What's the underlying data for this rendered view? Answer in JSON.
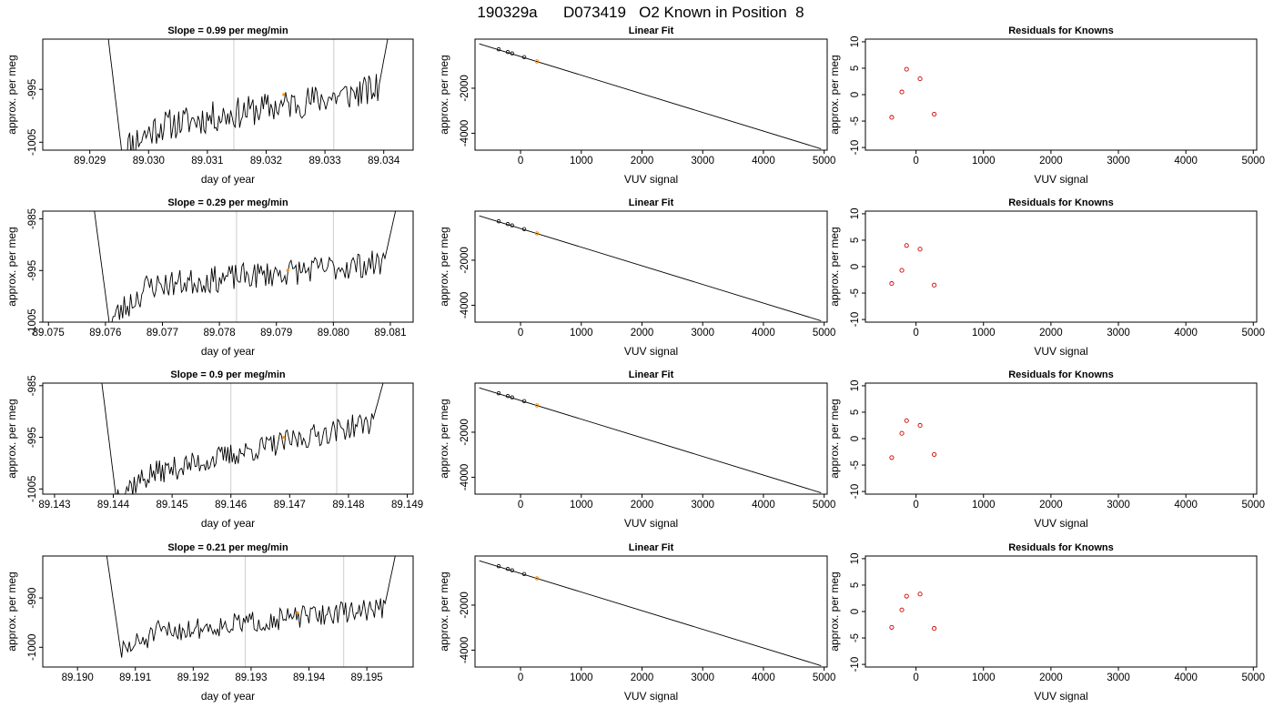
{
  "title": "190329a      D073419   O2 Known in Position  8",
  "colors": {
    "axis": "#000000",
    "trace": "#000000",
    "marker_orange": "#ff8c00",
    "marker_red": "#cc0000",
    "vline": "#cccccc"
  },
  "chart_data": [
    {
      "type": "line",
      "row": 1,
      "col": 1,
      "title": "Slope =  0.99  per meg/min",
      "xlabel": "day of year",
      "ylabel": "approx. per meg",
      "xlim": [
        89.0282,
        89.0345
      ],
      "ylim": [
        -1006.5,
        -985.5
      ],
      "xticks": [
        "89.029",
        "89.030",
        "89.031",
        "89.032",
        "89.033",
        "89.034"
      ],
      "xtick_values": [
        89.029,
        89.03,
        89.031,
        89.032,
        89.033,
        89.034
      ],
      "yticks": [
        "-1005",
        "-995"
      ],
      "ytick_values": [
        -1005,
        -995
      ],
      "trace": {
        "x_start": 89.0293,
        "x_end": 89.0341,
        "start_y": -984,
        "end_y": -983.5,
        "y_min": -1006.5,
        "y_from": -1002,
        "y_to": -995,
        "amp": 3.0,
        "seed": 11
      },
      "vlines": [
        89.03145,
        89.03315
      ],
      "marker": {
        "x": 89.0323,
        "y": -996
      }
    },
    {
      "type": "line",
      "row": 2,
      "col": 1,
      "title": "Slope =  0.29  per meg/min",
      "xlabel": "day of year",
      "ylabel": "approx. per meg",
      "xlim": [
        89.0749,
        89.0814
      ],
      "ylim": [
        -1005,
        -983.5
      ],
      "xticks": [
        "89.075",
        "89.076",
        "89.077",
        "89.078",
        "89.079",
        "89.080",
        "89.081"
      ],
      "xtick_values": [
        89.075,
        89.076,
        89.077,
        89.078,
        89.079,
        89.08,
        89.081
      ],
      "yticks": [
        "-1005",
        "-995",
        "-985"
      ],
      "ytick_values": [
        -1005,
        -995,
        -985
      ],
      "trace": {
        "x_start": 89.0758,
        "x_end": 89.0811,
        "start_y": -983,
        "end_y": -983,
        "y_min": -1005,
        "y_from": -998,
        "y_to": -993.5,
        "amp": 2.6,
        "seed": 23
      },
      "vlines": [
        89.0783,
        89.08
      ],
      "marker": {
        "x": 89.0792,
        "y": -995
      }
    },
    {
      "type": "line",
      "row": 3,
      "col": 1,
      "title": "Slope =  0.9  per meg/min",
      "xlabel": "day of year",
      "ylabel": "approx. per meg",
      "xlim": [
        89.1428,
        89.1491
      ],
      "ylim": [
        -1006,
        -984.5
      ],
      "xticks": [
        "89.143",
        "89.144",
        "89.145",
        "89.146",
        "89.147",
        "89.148",
        "89.149"
      ],
      "xtick_values": [
        89.143,
        89.144,
        89.145,
        89.146,
        89.147,
        89.148,
        89.149
      ],
      "yticks": [
        "-1005",
        "-995",
        "-985"
      ],
      "ytick_values": [
        -1005,
        -995,
        -985
      ],
      "trace": {
        "x_start": 89.1438,
        "x_end": 89.1486,
        "start_y": -984,
        "end_y": -984,
        "y_min": -1006,
        "y_from": -1002,
        "y_to": -992,
        "amp": 2.3,
        "seed": 37
      },
      "vlines": [
        89.146,
        89.1478
      ],
      "marker": {
        "x": 89.1469,
        "y": -995
      }
    },
    {
      "type": "line",
      "row": 4,
      "col": 1,
      "title": "Slope =  0.21  per meg/min",
      "xlabel": "day of year",
      "ylabel": "approx. per meg",
      "xlim": [
        89.1894,
        89.1958
      ],
      "ylim": [
        -1004,
        -981.5
      ],
      "xticks": [
        "89.190",
        "89.191",
        "89.192",
        "89.193",
        "89.194",
        "89.195"
      ],
      "xtick_values": [
        89.19,
        89.191,
        89.192,
        89.193,
        89.194,
        89.195
      ],
      "yticks": [
        "-1000",
        "-990"
      ],
      "ytick_values": [
        -1000,
        -990
      ],
      "trace": {
        "x_start": 89.1905,
        "x_end": 89.1955,
        "start_y": -981,
        "end_y": -981,
        "y_min": -1001,
        "y_from": -997,
        "y_to": -992,
        "amp": 2.2,
        "seed": 51
      },
      "vlines": [
        89.1929,
        89.1946
      ],
      "marker": {
        "x": 89.1938,
        "y": -993
      }
    },
    {
      "type": "line",
      "row": 1,
      "col": 2,
      "title": "Linear Fit",
      "xlabel": "VUV signal",
      "ylabel": "approx. per meg",
      "xlim": [
        -750,
        5050
      ],
      "ylim": [
        -4750,
        180
      ],
      "xticks": [
        "0",
        "1000",
        "2000",
        "3000",
        "4000",
        "5000"
      ],
      "xtick_values": [
        0,
        1000,
        2000,
        3000,
        4000,
        5000
      ],
      "yticks": [
        "-4000",
        "-2000"
      ],
      "ytick_values": [
        -4000,
        -2000
      ],
      "line": {
        "x": [
          -680,
          4950
        ],
        "y": [
          -30,
          -4690
        ]
      },
      "points": {
        "x": [
          -360,
          -210,
          -140,
          60
        ],
        "y": [
          -270,
          -395,
          -455,
          -620
        ]
      },
      "known": {
        "x": 270,
        "y": -810
      }
    },
    {
      "type": "line",
      "row": 2,
      "col": 2,
      "title": "Linear Fit",
      "xlabel": "VUV signal",
      "ylabel": "approx. per meg",
      "xlim": [
        -750,
        5050
      ],
      "ylim": [
        -4750,
        180
      ],
      "xticks": [
        "0",
        "1000",
        "2000",
        "3000",
        "4000",
        "5000"
      ],
      "xtick_values": [
        0,
        1000,
        2000,
        3000,
        4000,
        5000
      ],
      "yticks": [
        "-4000",
        "-2000"
      ],
      "ytick_values": [
        -4000,
        -2000
      ],
      "line": {
        "x": [
          -680,
          4950
        ],
        "y": [
          -30,
          -4690
        ]
      },
      "points": {
        "x": [
          -360,
          -210,
          -140,
          60
        ],
        "y": [
          -270,
          -395,
          -455,
          -620
        ]
      },
      "known": {
        "x": 270,
        "y": -810
      }
    },
    {
      "type": "line",
      "row": 3,
      "col": 2,
      "title": "Linear Fit",
      "xlabel": "VUV signal",
      "ylabel": "approx. per meg",
      "xlim": [
        -750,
        5050
      ],
      "ylim": [
        -4750,
        180
      ],
      "xticks": [
        "0",
        "1000",
        "2000",
        "3000",
        "4000",
        "5000"
      ],
      "xtick_values": [
        0,
        1000,
        2000,
        3000,
        4000,
        5000
      ],
      "yticks": [
        "-4000",
        "-2000"
      ],
      "ytick_values": [
        -4000,
        -2000
      ],
      "line": {
        "x": [
          -680,
          4950
        ],
        "y": [
          -30,
          -4690
        ]
      },
      "points": {
        "x": [
          -360,
          -210,
          -140,
          60
        ],
        "y": [
          -270,
          -395,
          -455,
          -620
        ]
      },
      "known": {
        "x": 270,
        "y": -810
      }
    },
    {
      "type": "line",
      "row": 4,
      "col": 2,
      "title": "Linear Fit",
      "xlabel": "VUV signal",
      "ylabel": "approx. per meg",
      "xlim": [
        -750,
        5050
      ],
      "ylim": [
        -4750,
        180
      ],
      "xticks": [
        "0",
        "1000",
        "2000",
        "3000",
        "4000",
        "5000"
      ],
      "xtick_values": [
        0,
        1000,
        2000,
        3000,
        4000,
        5000
      ],
      "yticks": [
        "-4000",
        "-2000"
      ],
      "ytick_values": [
        -4000,
        -2000
      ],
      "line": {
        "x": [
          -680,
          4950
        ],
        "y": [
          -30,
          -4690
        ]
      },
      "points": {
        "x": [
          -360,
          -210,
          -140,
          60
        ],
        "y": [
          -270,
          -395,
          -455,
          -620
        ]
      },
      "known": {
        "x": 270,
        "y": -810
      }
    },
    {
      "type": "scatter",
      "row": 1,
      "col": 3,
      "title": "Residuals for Knowns",
      "xlabel": "VUV signal",
      "ylabel": "approx. per meg",
      "xlim": [
        -750,
        5050
      ],
      "ylim": [
        -10.5,
        10.5
      ],
      "xticks": [
        "0",
        "1000",
        "2000",
        "3000",
        "4000",
        "5000"
      ],
      "xtick_values": [
        0,
        1000,
        2000,
        3000,
        4000,
        5000
      ],
      "yticks": [
        "-10",
        "-5",
        "0",
        "5",
        "10"
      ],
      "ytick_values": [
        -10,
        -5,
        0,
        5,
        10
      ],
      "points": {
        "x": [
          -360,
          -210,
          -140,
          60,
          270
        ],
        "y": [
          -4.3,
          0.5,
          4.8,
          3.0,
          -3.7
        ]
      }
    },
    {
      "type": "scatter",
      "row": 2,
      "col": 3,
      "title": "Residuals for Knowns",
      "xlabel": "VUV signal",
      "ylabel": "approx. per meg",
      "xlim": [
        -750,
        5050
      ],
      "ylim": [
        -10.5,
        10.5
      ],
      "xticks": [
        "0",
        "1000",
        "2000",
        "3000",
        "4000",
        "5000"
      ],
      "xtick_values": [
        0,
        1000,
        2000,
        3000,
        4000,
        5000
      ],
      "yticks": [
        "-10",
        "-5",
        "0",
        "5",
        "10"
      ],
      "ytick_values": [
        -10,
        -5,
        0,
        5,
        10
      ],
      "points": {
        "x": [
          -360,
          -210,
          -140,
          60,
          270
        ],
        "y": [
          -3.2,
          -0.7,
          4.0,
          3.3,
          -3.5
        ]
      }
    },
    {
      "type": "scatter",
      "row": 3,
      "col": 3,
      "title": "Residuals for Knowns",
      "xlabel": "VUV signal",
      "ylabel": "approx. per meg",
      "xlim": [
        -750,
        5050
      ],
      "ylim": [
        -10.5,
        10.5
      ],
      "xticks": [
        "0",
        "1000",
        "2000",
        "3000",
        "4000",
        "5000"
      ],
      "xtick_values": [
        0,
        1000,
        2000,
        3000,
        4000,
        5000
      ],
      "yticks": [
        "-10",
        "-5",
        "0",
        "5",
        "10"
      ],
      "ytick_values": [
        -10,
        -5,
        0,
        5,
        10
      ],
      "points": {
        "x": [
          -360,
          -210,
          -140,
          60,
          270
        ],
        "y": [
          -3.6,
          1.0,
          3.4,
          2.5,
          -3.0
        ]
      }
    },
    {
      "type": "scatter",
      "row": 4,
      "col": 3,
      "title": "Residuals for Knowns",
      "xlabel": "VUV signal",
      "ylabel": "approx. per meg",
      "xlim": [
        -750,
        5050
      ],
      "ylim": [
        -10.5,
        10.5
      ],
      "xticks": [
        "0",
        "1000",
        "2000",
        "3000",
        "4000",
        "5000"
      ],
      "xtick_values": [
        0,
        1000,
        2000,
        3000,
        4000,
        5000
      ],
      "yticks": [
        "-10",
        "-5",
        "0",
        "5",
        "10"
      ],
      "ytick_values": [
        -10,
        -5,
        0,
        5,
        10
      ],
      "points": {
        "x": [
          -360,
          -210,
          -140,
          60,
          270
        ],
        "y": [
          -3.0,
          0.3,
          2.9,
          3.3,
          -3.2
        ]
      }
    }
  ]
}
